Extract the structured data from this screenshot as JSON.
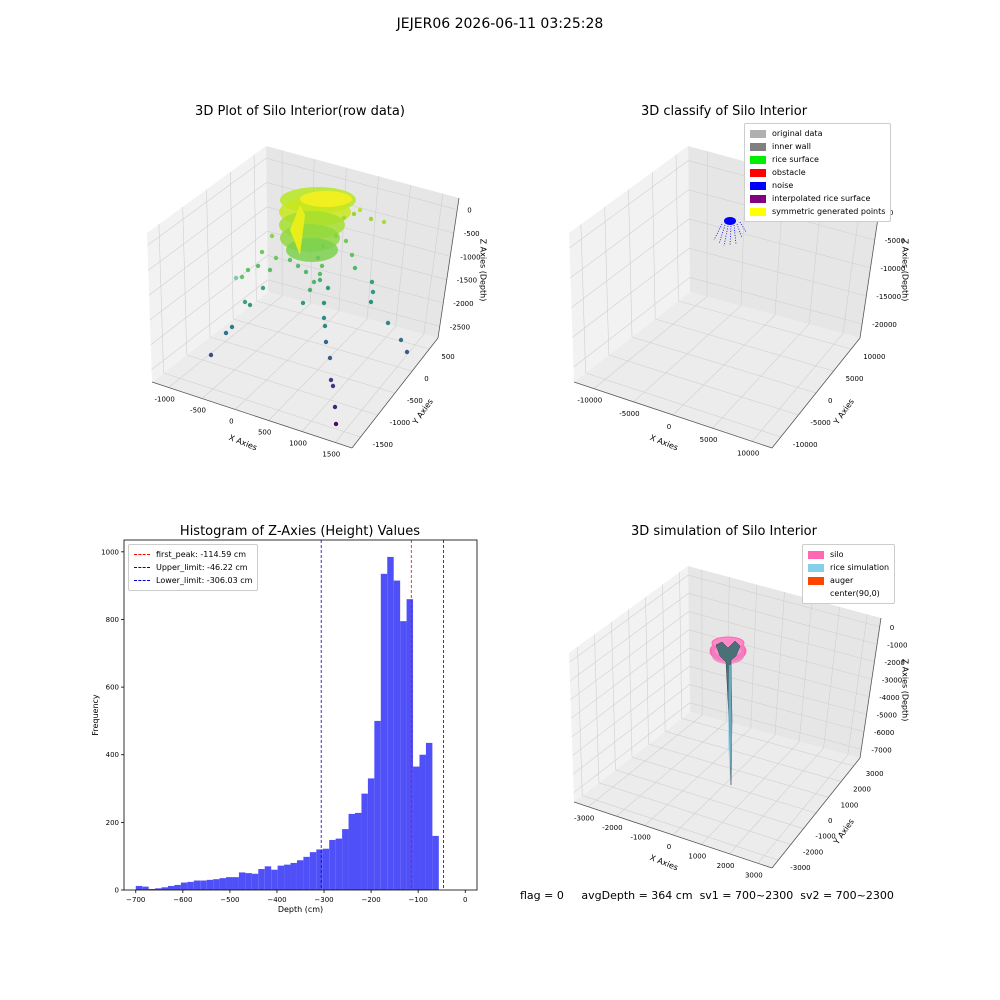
{
  "suptitle": "JEJER06 2026-06-11 03:25:28",
  "footer": {
    "flag": "flag = 0",
    "avg_depth": "avgDepth = 364 cm",
    "sv1": "sv1 = 700~2300",
    "sv2": "sv2 = 700~2300"
  },
  "colors": {
    "hist_bar": "#5050f8",
    "peak_line": "#ff0000",
    "limit_line": "#0000cc"
  },
  "chart_data": [
    {
      "type": "scatter",
      "projection": "3d",
      "title": "3D Plot of Silo Interior(row data)",
      "xlabel": "X Axies",
      "ylabel": "Y Axies",
      "zlabel": "Z Axies (Depth)",
      "x_ticks": [
        "-1000",
        "-500",
        "0",
        "500",
        "1000",
        "1500"
      ],
      "y_ticks": [
        "500",
        "0",
        "-500",
        "-1000",
        "-1500"
      ],
      "z_ticks": [
        "0",
        "-500",
        "-1000",
        "-1500",
        "-2000",
        "-2500"
      ],
      "colormap": "viridis",
      "note_points": "yellow-green dense cluster near top (0 to -1000), sparse points extending to about -2800"
    },
    {
      "type": "scatter",
      "projection": "3d",
      "title": "3D classify of Silo Interior",
      "xlabel": "X Axies",
      "ylabel": "Y Axies",
      "zlabel": "Z Axies (Depth)",
      "x_ticks": [
        "-10000",
        "-5000",
        "0",
        "5000",
        "10000"
      ],
      "y_ticks": [
        "10000",
        "5000",
        "0",
        "-5000",
        "-10000"
      ],
      "z_ticks": [
        "0",
        "-5000",
        "-10000",
        "-15000",
        "-20000"
      ],
      "legend": [
        {
          "label": "original data",
          "color": "#b0b0b0"
        },
        {
          "label": "inner wall",
          "color": "#808080"
        },
        {
          "label": "rice surface",
          "color": "#00ee00"
        },
        {
          "label": "obstacle",
          "color": "#ff0000"
        },
        {
          "label": "noise",
          "color": "#0000ff"
        },
        {
          "label": "interpolated rice surface",
          "color": "#800080"
        },
        {
          "label": "symmetric generated points",
          "color": "#ffff00"
        }
      ]
    },
    {
      "type": "bar",
      "subtype": "histogram",
      "title": "Histogram of Z-Axies (Height) Values",
      "xlabel": "Depth (cm)",
      "ylabel": "Frequency",
      "xlim": [
        -725,
        25
      ],
      "ylim": [
        0,
        1035
      ],
      "x_ticks": [
        -700,
        -600,
        -500,
        -400,
        -300,
        -200,
        -100,
        0
      ],
      "y_ticks": [
        0,
        200,
        400,
        600,
        800,
        1000
      ],
      "bin_start": -700,
      "bin_width": 13.7,
      "values": [
        12,
        10,
        3,
        5,
        8,
        12,
        15,
        22,
        24,
        28,
        28,
        30,
        32,
        35,
        38,
        38,
        52,
        50,
        48,
        62,
        70,
        60,
        72,
        75,
        80,
        88,
        98,
        112,
        120,
        122,
        148,
        152,
        180,
        225,
        228,
        285,
        330,
        500,
        935,
        985,
        915,
        795,
        860,
        365,
        400,
        435,
        160
      ],
      "vlines": [
        {
          "label": "first_peak: -114.59 cm",
          "x": -114.59,
          "color": "#ff0000"
        },
        {
          "label": "Upper_limit: -46.22 cm",
          "x": -46.22,
          "color": "#0000cc"
        },
        {
          "label": "Lower_limit: -306.03 cm",
          "x": -306.03,
          "color": "#0000cc"
        }
      ],
      "legend_position": "top-left"
    },
    {
      "type": "surface",
      "projection": "3d",
      "title": "3D simulation of Silo Interior",
      "xlabel": "X Axies",
      "ylabel": "Y Axies",
      "zlabel": "Z Axies (Depth)",
      "x_ticks": [
        "-3000",
        "-2000",
        "-1000",
        "0",
        "1000",
        "2000",
        "3000"
      ],
      "y_ticks": [
        "3000",
        "2000",
        "1000",
        "0",
        "-1000",
        "-2000",
        "-3000"
      ],
      "z_ticks": [
        "0",
        "-1000",
        "-2000",
        "-3000",
        "-4000",
        "-5000",
        "-6000",
        "-7000"
      ],
      "legend": [
        {
          "label": "silo",
          "color": "#ff69b4"
        },
        {
          "label": "rice simulation",
          "color": "#87ceeb"
        },
        {
          "label": "auger",
          "color": "#ff4500"
        },
        {
          "label": "center(90,0)",
          "color": ""
        }
      ]
    }
  ]
}
